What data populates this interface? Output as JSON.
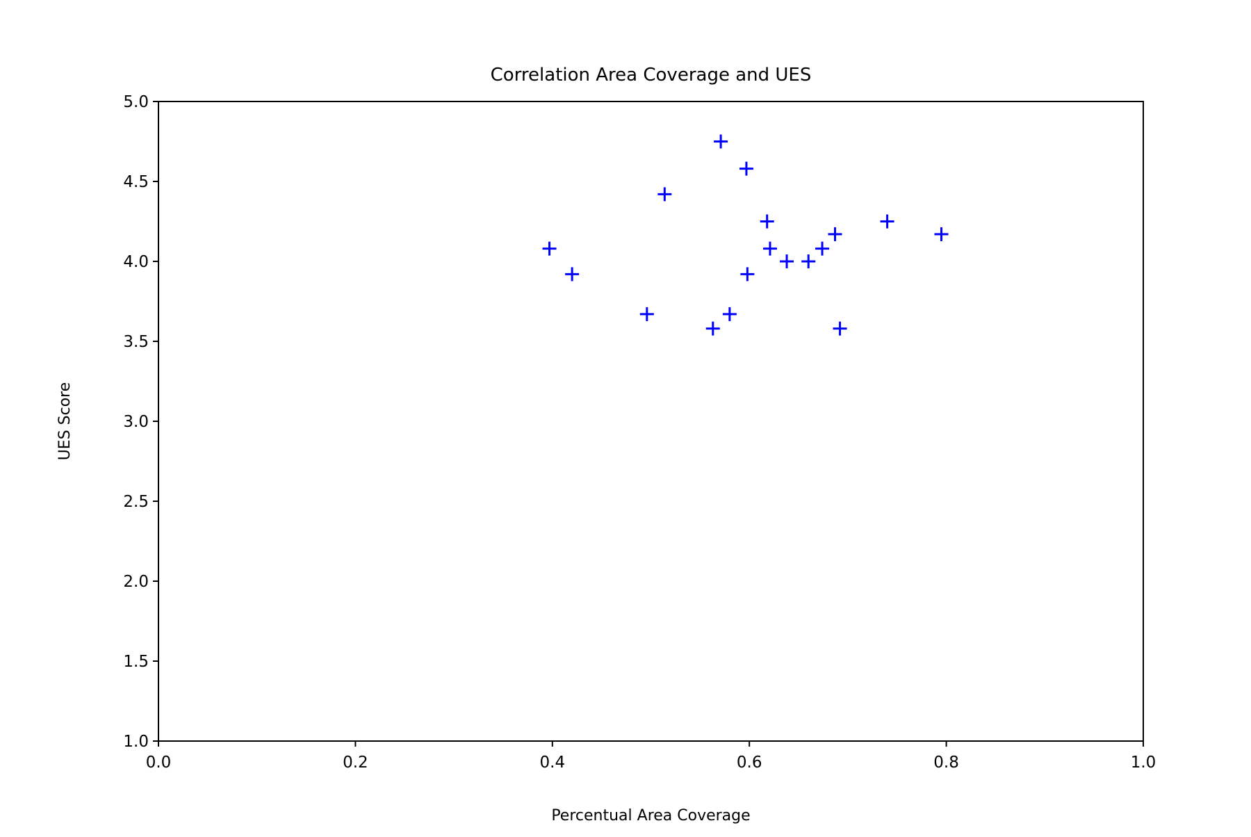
{
  "chart_data": {
    "type": "scatter",
    "title": "Correlation Area Coverage and UES",
    "xlabel": "Percentual Area Coverage",
    "ylabel": "UES Score",
    "xlim": [
      0.0,
      1.0
    ],
    "ylim": [
      1.0,
      5.0
    ],
    "x_ticks": [
      "0.0",
      "0.2",
      "0.4",
      "0.6",
      "0.8",
      "1.0"
    ],
    "y_ticks": [
      "1.0",
      "1.5",
      "2.0",
      "2.5",
      "3.0",
      "3.5",
      "4.0",
      "4.5",
      "5.0"
    ],
    "grid": false,
    "marker": "plus",
    "marker_color": "#0000ff",
    "points": [
      {
        "x": 0.397,
        "y": 4.08
      },
      {
        "x": 0.42,
        "y": 3.92
      },
      {
        "x": 0.496,
        "y": 3.67
      },
      {
        "x": 0.514,
        "y": 4.42
      },
      {
        "x": 0.563,
        "y": 3.58
      },
      {
        "x": 0.571,
        "y": 4.75
      },
      {
        "x": 0.58,
        "y": 3.67
      },
      {
        "x": 0.597,
        "y": 4.58
      },
      {
        "x": 0.598,
        "y": 3.92
      },
      {
        "x": 0.618,
        "y": 4.25
      },
      {
        "x": 0.621,
        "y": 4.08
      },
      {
        "x": 0.638,
        "y": 4.0
      },
      {
        "x": 0.66,
        "y": 4.0
      },
      {
        "x": 0.674,
        "y": 4.08
      },
      {
        "x": 0.687,
        "y": 4.17
      },
      {
        "x": 0.692,
        "y": 3.58
      },
      {
        "x": 0.74,
        "y": 4.25
      },
      {
        "x": 0.795,
        "y": 4.17
      }
    ]
  }
}
